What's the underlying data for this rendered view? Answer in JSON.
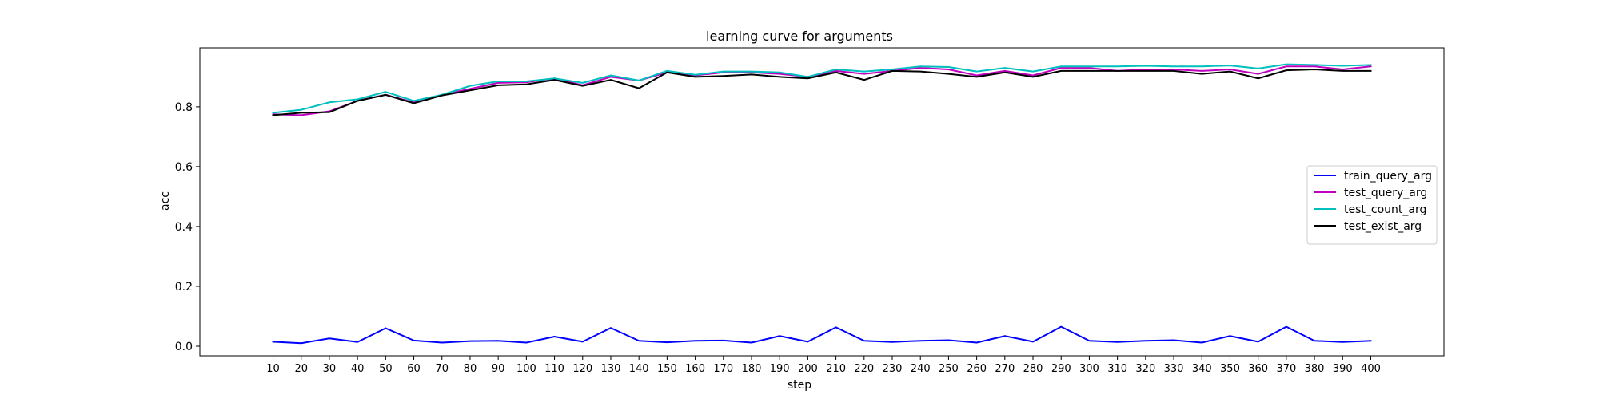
{
  "chart_data": {
    "type": "line",
    "title": "learning curve for arguments",
    "xlabel": "step",
    "ylabel": "acc",
    "x": [
      10,
      20,
      30,
      40,
      50,
      60,
      70,
      80,
      90,
      100,
      110,
      120,
      130,
      140,
      150,
      160,
      170,
      180,
      190,
      200,
      210,
      220,
      230,
      240,
      250,
      260,
      270,
      280,
      290,
      300,
      310,
      320,
      330,
      340,
      350,
      360,
      370,
      380,
      390,
      400
    ],
    "xlim": [
      -16,
      426
    ],
    "ylim": [
      -0.032,
      0.997
    ],
    "yticks": [
      0.0,
      0.2,
      0.4,
      0.6,
      0.8
    ],
    "ytick_labels": [
      "0.0",
      "0.2",
      "0.4",
      "0.6",
      "0.8"
    ],
    "legend_position": "center-right",
    "grid": false,
    "series": [
      {
        "name": "train_query_arg",
        "color": "#0000ff",
        "values": [
          0.015,
          0.01,
          0.026,
          0.014,
          0.06,
          0.019,
          0.012,
          0.017,
          0.018,
          0.012,
          0.032,
          0.015,
          0.061,
          0.018,
          0.013,
          0.018,
          0.019,
          0.012,
          0.034,
          0.015,
          0.063,
          0.018,
          0.014,
          0.018,
          0.02,
          0.012,
          0.034,
          0.015,
          0.065,
          0.018,
          0.014,
          0.018,
          0.02,
          0.012,
          0.034,
          0.015,
          0.065,
          0.018,
          0.014,
          0.018
        ]
      },
      {
        "name": "test_query_arg",
        "color": "#bf00bf",
        "values": [
          0.775,
          0.772,
          0.785,
          0.82,
          0.84,
          0.815,
          0.84,
          0.86,
          0.88,
          0.882,
          0.895,
          0.872,
          0.9,
          0.888,
          0.915,
          0.905,
          0.915,
          0.915,
          0.91,
          0.9,
          0.92,
          0.91,
          0.92,
          0.93,
          0.925,
          0.905,
          0.92,
          0.905,
          0.93,
          0.93,
          0.92,
          0.925,
          0.925,
          0.92,
          0.925,
          0.91,
          0.935,
          0.935,
          0.925,
          0.935
        ]
      },
      {
        "name": "test_count_arg",
        "color": "#00bfbf",
        "values": [
          0.78,
          0.79,
          0.815,
          0.825,
          0.85,
          0.82,
          0.84,
          0.87,
          0.885,
          0.885,
          0.895,
          0.88,
          0.905,
          0.888,
          0.92,
          0.907,
          0.918,
          0.918,
          0.915,
          0.9,
          0.925,
          0.918,
          0.925,
          0.935,
          0.933,
          0.918,
          0.93,
          0.918,
          0.935,
          0.935,
          0.935,
          0.937,
          0.935,
          0.935,
          0.938,
          0.928,
          0.942,
          0.94,
          0.937,
          0.94
        ]
      },
      {
        "name": "test_exist_arg",
        "color": "#000000",
        "values": [
          0.772,
          0.78,
          0.782,
          0.82,
          0.84,
          0.812,
          0.838,
          0.855,
          0.872,
          0.875,
          0.89,
          0.87,
          0.89,
          0.862,
          0.915,
          0.9,
          0.903,
          0.908,
          0.9,
          0.895,
          0.915,
          0.89,
          0.92,
          0.918,
          0.91,
          0.9,
          0.915,
          0.9,
          0.92,
          0.92,
          0.92,
          0.92,
          0.92,
          0.91,
          0.918,
          0.895,
          0.922,
          0.925,
          0.92,
          0.92
        ]
      }
    ]
  }
}
